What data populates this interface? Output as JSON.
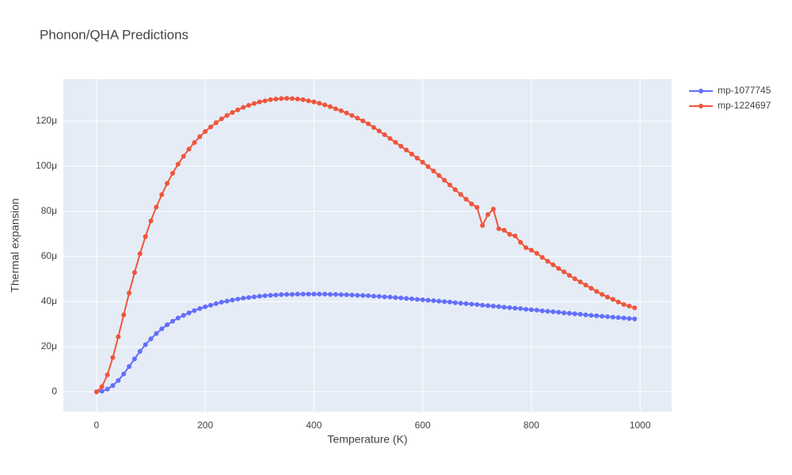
{
  "chart_data": {
    "type": "line",
    "title": "Phonon/QHA Predictions",
    "x_label": "Temperature (K)",
    "y_label": "Thermal expansion",
    "x": [
      0,
      10,
      20,
      30,
      40,
      50,
      60,
      70,
      80,
      90,
      100,
      110,
      120,
      130,
      140,
      150,
      160,
      170,
      180,
      190,
      200,
      210,
      220,
      230,
      240,
      250,
      260,
      270,
      280,
      290,
      300,
      310,
      320,
      330,
      340,
      350,
      360,
      370,
      380,
      390,
      400,
      410,
      420,
      430,
      440,
      450,
      460,
      470,
      480,
      490,
      500,
      510,
      520,
      530,
      540,
      550,
      560,
      570,
      580,
      590,
      600,
      610,
      620,
      630,
      640,
      650,
      660,
      670,
      680,
      690,
      700,
      710,
      720,
      730,
      740,
      750,
      760,
      770,
      780,
      790,
      800,
      810,
      820,
      830,
      840,
      850,
      860,
      870,
      880,
      890,
      900,
      910,
      920,
      930,
      940,
      950,
      960,
      970,
      980,
      990
    ],
    "series": [
      {
        "name": "mp-1077745",
        "color": "#636efa",
        "values": [
          0,
          0.3,
          1.2,
          2.8,
          5.0,
          7.9,
          11.2,
          14.6,
          17.9,
          20.9,
          23.5,
          25.8,
          27.9,
          29.7,
          31.3,
          32.7,
          33.9,
          35.0,
          36.0,
          36.9,
          37.7,
          38.4,
          39.1,
          39.7,
          40.2,
          40.7,
          41.1,
          41.5,
          41.8,
          42.1,
          42.4,
          42.6,
          42.8,
          42.9,
          43.1,
          43.2,
          43.2,
          43.3,
          43.3,
          43.3,
          43.3,
          43.3,
          43.3,
          43.2,
          43.2,
          43.1,
          43.0,
          42.9,
          42.8,
          42.7,
          42.6,
          42.4,
          42.3,
          42.1,
          42.0,
          41.8,
          41.6,
          41.4,
          41.2,
          41.0,
          40.8,
          40.6,
          40.4,
          40.2,
          40.0,
          39.8,
          39.5,
          39.3,
          39.1,
          38.9,
          38.7,
          38.4,
          38.2,
          38.0,
          37.8,
          37.5,
          37.3,
          37.1,
          36.9,
          36.6,
          36.4,
          36.2,
          35.9,
          35.7,
          35.5,
          35.3,
          35.0,
          34.8,
          34.6,
          34.4,
          34.1,
          33.9,
          33.7,
          33.5,
          33.3,
          33.1,
          32.9,
          32.7,
          32.5,
          32.3
        ]
      },
      {
        "name": "mp-1224697",
        "color": "#ef553b",
        "values": [
          0,
          2.3,
          7.5,
          15.2,
          24.4,
          34.1,
          43.8,
          52.9,
          61.2,
          68.8,
          75.8,
          81.9,
          87.4,
          92.4,
          96.9,
          100.9,
          104.4,
          107.6,
          110.5,
          113.1,
          115.4,
          117.4,
          119.3,
          121.0,
          122.5,
          123.8,
          125.0,
          126.1,
          127.0,
          127.8,
          128.5,
          129.0,
          129.5,
          129.8,
          130.0,
          130.1,
          130.0,
          129.8,
          129.5,
          129.0,
          128.5,
          127.9,
          127.2,
          126.4,
          125.5,
          124.6,
          123.6,
          122.5,
          121.3,
          120.1,
          118.8,
          117.2,
          115.6,
          114.0,
          112.3,
          110.6,
          108.9,
          107.2,
          105.4,
          103.6,
          101.8,
          99.8,
          97.9,
          95.9,
          93.8,
          91.7,
          89.6,
          87.5,
          85.4,
          83.3,
          81.8,
          73.7,
          78.6,
          81.0,
          72.3,
          71.6,
          69.8,
          69.1,
          66.3,
          63.9,
          62.8,
          61.4,
          59.6,
          57.9,
          56.3,
          54.7,
          53.2,
          51.6,
          50.1,
          48.7,
          47.3,
          45.9,
          44.5,
          43.2,
          42.0,
          41.0,
          39.8,
          38.7,
          38.0,
          37.2
        ]
      }
    ],
    "xlim": [
      -61,
      1058
    ],
    "xticks": [
      0,
      200,
      400,
      600,
      800,
      1000
    ],
    "ylim": [
      -8.8,
      138.6
    ],
    "yticks": [
      0,
      {
        "value": 20,
        "label": "20μ"
      },
      {
        "value": 40,
        "label": "40μ"
      },
      {
        "value": 60,
        "label": "60μ"
      },
      {
        "value": 80,
        "label": "80μ"
      },
      {
        "value": 100,
        "label": "100μ"
      },
      {
        "value": 120,
        "label": "120μ"
      }
    ],
    "grid": true,
    "legend": "top-right"
  }
}
